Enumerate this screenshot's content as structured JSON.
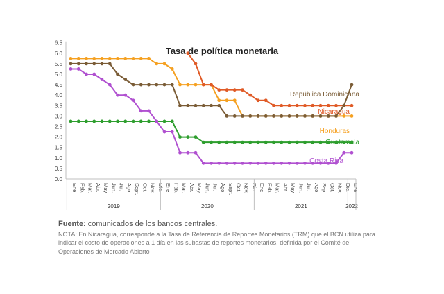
{
  "chart_data": {
    "type": "line",
    "title": "Tasa de política monetaria",
    "ylim": [
      0,
      6.5
    ],
    "y_ticks": [
      "0.0",
      "0.5",
      "1.0",
      "1.5",
      "2.0",
      "2.5",
      "3.0",
      "3.5",
      "4.0",
      "4.5",
      "5.0",
      "5.5",
      "6.0",
      "6.5"
    ],
    "grid": false,
    "legend": "inline labels at line ends",
    "months": [
      "Ene.",
      "Feb.",
      "Mar.",
      "Abr.",
      "May.",
      "Jun.",
      "Jul.",
      "Ago.",
      "Sept.",
      "Oct.",
      "Nov.",
      "Dic.",
      "Ene.",
      "Feb.",
      "Mar.",
      "Abr.",
      "May.",
      "Jun.",
      "Jul.",
      "Ago.",
      "Sept.",
      "Oct.",
      "Nov.",
      "Dic.",
      "Ene.",
      "Feb.",
      "Mar.",
      "Abr.",
      "May.",
      "Jun.",
      "Jul.",
      "Ago.",
      "Sept.",
      "Oct.",
      "Nov.",
      "Dic.",
      "Ene."
    ],
    "years": [
      {
        "label": "2019",
        "start": 0,
        "end": 11
      },
      {
        "label": "2020",
        "start": 12,
        "end": 23
      },
      {
        "label": "2021",
        "start": 24,
        "end": 35
      },
      {
        "label": "2022",
        "start": 36,
        "end": 36
      }
    ],
    "series": [
      {
        "name": "República Dominicana",
        "color": "#7a5c36",
        "values": [
          5.5,
          5.5,
          5.5,
          5.5,
          5.5,
          5.5,
          5.0,
          4.75,
          4.5,
          4.5,
          4.5,
          4.5,
          4.5,
          4.5,
          3.5,
          3.5,
          3.5,
          3.5,
          3.5,
          3.5,
          3.0,
          3.0,
          3.0,
          3.0,
          3.0,
          3.0,
          3.0,
          3.0,
          3.0,
          3.0,
          3.0,
          3.0,
          3.0,
          3.0,
          3.0,
          3.5,
          4.5
        ]
      },
      {
        "name": "Nicaragua",
        "color": "#e05a26",
        "values": [
          null,
          null,
          null,
          null,
          null,
          null,
          null,
          null,
          null,
          null,
          null,
          null,
          null,
          null,
          null,
          6.0,
          5.5,
          4.5,
          4.5,
          4.25,
          4.25,
          4.25,
          4.25,
          4.0,
          3.75,
          3.75,
          3.5,
          3.5,
          3.5,
          3.5,
          3.5,
          3.5,
          3.5,
          3.5,
          3.5,
          3.5,
          3.5
        ]
      },
      {
        "name": "Honduras",
        "color": "#f5a020",
        "values": [
          5.75,
          5.75,
          5.75,
          5.75,
          5.75,
          5.75,
          5.75,
          5.75,
          5.75,
          5.75,
          5.75,
          5.5,
          5.5,
          5.25,
          4.5,
          4.5,
          4.5,
          4.5,
          4.5,
          3.75,
          3.75,
          3.75,
          3.0,
          3.0,
          3.0,
          3.0,
          3.0,
          3.0,
          3.0,
          3.0,
          3.0,
          3.0,
          3.0,
          3.0,
          3.0,
          3.0,
          3.0
        ]
      },
      {
        "name": "Guatemala",
        "color": "#2e9e2e",
        "values": [
          2.75,
          2.75,
          2.75,
          2.75,
          2.75,
          2.75,
          2.75,
          2.75,
          2.75,
          2.75,
          2.75,
          2.75,
          2.75,
          2.75,
          2.0,
          2.0,
          2.0,
          1.75,
          1.75,
          1.75,
          1.75,
          1.75,
          1.75,
          1.75,
          1.75,
          1.75,
          1.75,
          1.75,
          1.75,
          1.75,
          1.75,
          1.75,
          1.75,
          1.75,
          1.75,
          1.75,
          1.75
        ]
      },
      {
        "name": "Costa Rica",
        "color": "#b050d0",
        "values": [
          5.25,
          5.25,
          5.0,
          5.0,
          4.75,
          4.5,
          4.0,
          4.0,
          3.75,
          3.25,
          3.25,
          2.75,
          2.25,
          2.25,
          1.25,
          1.25,
          1.25,
          0.75,
          0.75,
          0.75,
          0.75,
          0.75,
          0.75,
          0.75,
          0.75,
          0.75,
          0.75,
          0.75,
          0.75,
          0.75,
          0.75,
          0.75,
          0.75,
          0.75,
          0.75,
          1.25,
          1.25
        ]
      }
    ]
  },
  "source_label": "Fuente:",
  "source_text": " comunicados de los bancos centrales.",
  "note_text": "NOTA: En Nicaragua, corresponde a la Tasa de Referencia de Reportes Monetarios (TRM) que el BCN utiliza para indicar el costo de operaciones a 1 día en las subastas de reportes monetarios, definida por el Comité de Operaciones de Mercado Abierto"
}
